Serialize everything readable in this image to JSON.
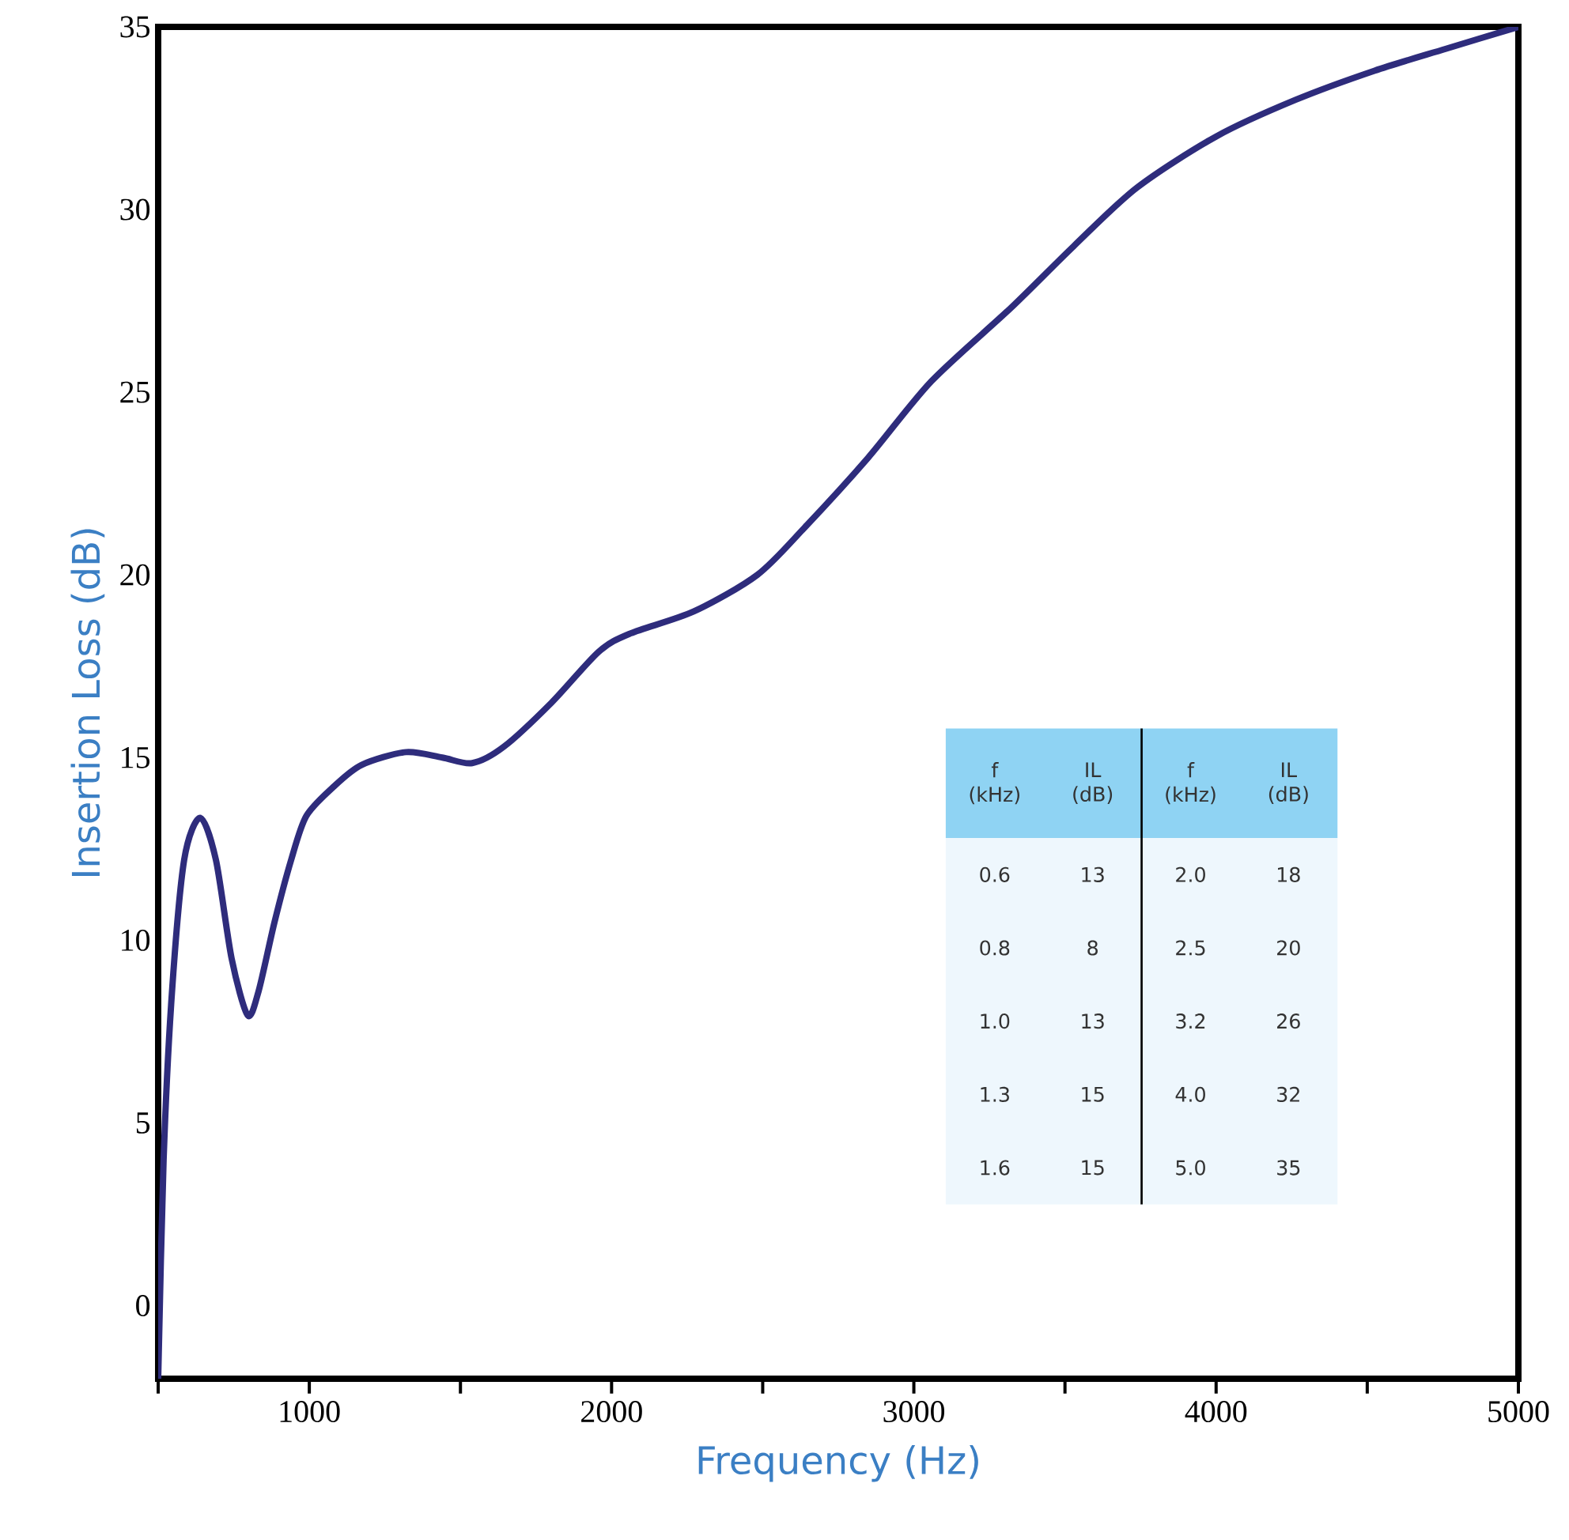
{
  "chart_data": {
    "type": "line",
    "xlabel": "Frequency (Hz)",
    "ylabel": "Insertion Loss (dB)",
    "xlim": [
      500,
      5000
    ],
    "ylim": [
      -2,
      35
    ],
    "xticks": [
      {
        "value": 500,
        "label": null
      },
      1000,
      {
        "value": 1500,
        "label": null
      },
      2000,
      {
        "value": 2500,
        "label": null
      },
      3000,
      {
        "value": 3500,
        "label": null
      },
      4000,
      {
        "value": 4500,
        "label": null
      },
      5000
    ],
    "yticks": [
      0,
      5,
      10,
      15,
      20,
      25,
      30,
      35
    ],
    "grid": false,
    "marker": "none",
    "line_style": "solid",
    "series": [
      {
        "color": "#2e2c7c",
        "x": [
          500,
          518,
          545,
          586,
          639,
          691,
          743,
          796,
          832,
          885,
          940,
          990,
          1080,
          1173,
          1320,
          1440,
          1539,
          1644,
          1801,
          1958,
          2063,
          2272,
          2482,
          2639,
          2848,
          3058,
          3320,
          3529,
          3738,
          4000,
          4262,
          4524,
          4760,
          5000
        ],
        "values": [
          -2,
          4,
          8.5,
          12.2,
          13.35,
          12.2,
          9.5,
          7.95,
          8.6,
          10.5,
          12.2,
          13.4,
          14.2,
          14.8,
          15.15,
          15.0,
          14.85,
          15.3,
          16.5,
          17.9,
          18.4,
          19.0,
          20.0,
          21.3,
          23.2,
          25.3,
          27.3,
          29.0,
          30.6,
          32.0,
          33.0,
          33.8,
          34.4,
          35
        ]
      }
    ],
    "annotations": [
      "f (kHz)",
      "IL (dB)",
      "f (kHz)",
      "IL (dB)",
      "0.6",
      "13",
      "2.0",
      "18",
      "0.8",
      "8",
      "2.5",
      "20",
      "1.0",
      "13",
      "3.2",
      "26",
      "1.3",
      "15",
      "4.0",
      "32",
      "1.6",
      "15",
      "5.0",
      "35"
    ]
  }
}
